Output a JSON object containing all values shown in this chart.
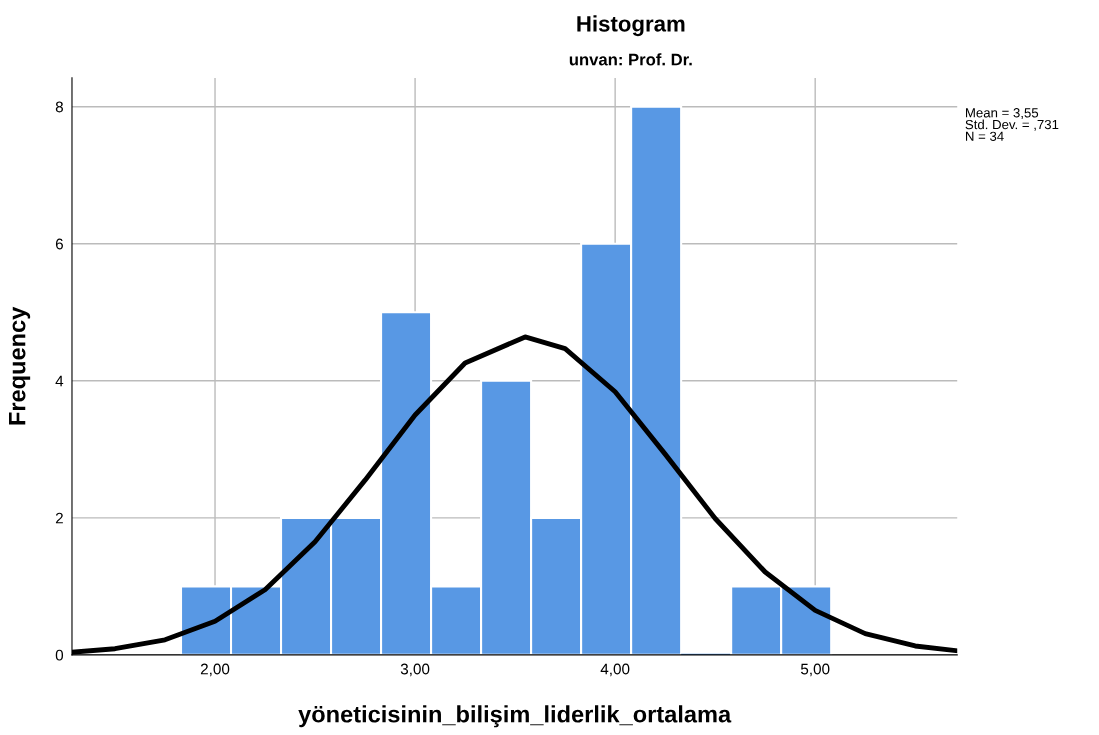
{
  "chart_data": {
    "type": "histogram",
    "title": "Histogram",
    "subtitle": "unvan: Prof. Dr.",
    "xlabel": "yöneticisinin_bilişim_liderlik_ortalama",
    "ylabel": "Frequency",
    "bins": [
      1.83,
      2.08,
      2.33,
      2.58,
      2.83,
      3.08,
      3.33,
      3.58,
      3.83,
      4.08,
      4.33,
      4.58,
      4.83,
      5.08
    ],
    "series": [
      {
        "color": "#5898e4",
        "values": [
          1,
          1,
          2,
          2,
          5,
          1,
          4,
          2,
          6,
          8,
          0,
          1,
          1
        ]
      },
      {
        "type": "line",
        "color": "#000000",
        "x": [
          1.285,
          1.5,
          1.75,
          2.0,
          2.25,
          2.5,
          2.75,
          3.0,
          3.25,
          3.55,
          3.75,
          4.0,
          4.25,
          4.5,
          4.75,
          5.0,
          5.25,
          5.5,
          5.71
        ],
        "values": [
          0.04,
          0.09,
          0.22,
          0.49,
          0.95,
          1.65,
          2.55,
          3.5,
          4.26,
          4.64,
          4.47,
          3.84,
          2.93,
          1.99,
          1.21,
          0.65,
          0.31,
          0.13,
          0.06
        ]
      }
    ],
    "xlim": [
      1.285,
      5.71
    ],
    "ylim": [
      0,
      8.42
    ],
    "xticks": [
      {
        "value": 2,
        "label": "2,00"
      },
      {
        "value": 3,
        "label": "3,00"
      },
      {
        "value": 4,
        "label": "4,00"
      },
      {
        "value": 5,
        "label": "5,00"
      }
    ],
    "yticks": [
      0,
      2,
      4,
      6,
      8
    ],
    "grid": true,
    "marker": "none",
    "line_style": "solid",
    "annotations": [
      "Mean = 3,55",
      "Std. Dev. = ,731",
      "N = 34"
    ]
  }
}
